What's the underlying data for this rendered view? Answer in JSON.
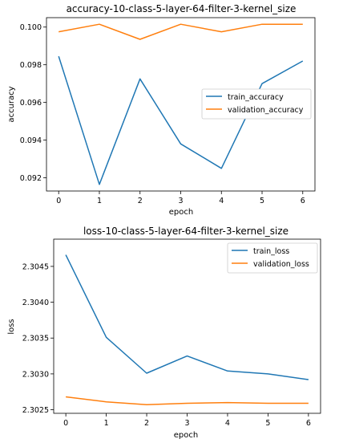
{
  "colors": {
    "train": "#1f77b4",
    "validation": "#ff7f0e",
    "frame": "#000000",
    "legend_border": "#cccccc"
  },
  "chart_data": [
    {
      "type": "line",
      "title": "accuracy-10-class-5-layer-64-filter-3-kernel_size",
      "xlabel": "epoch",
      "ylabel": "accuracy",
      "x": [
        0,
        1,
        2,
        3,
        4,
        5,
        6
      ],
      "xticks": [
        "0",
        "1",
        "2",
        "3",
        "4",
        "5",
        "6"
      ],
      "yticks": [
        "0.092",
        "0.094",
        "0.096",
        "0.098",
        "0.100"
      ],
      "ytick_values": [
        0.092,
        0.094,
        0.096,
        0.098,
        0.1
      ],
      "xlim": [
        -0.3,
        6.3
      ],
      "ylim": [
        0.0913,
        0.1005
      ],
      "legend_position": "center-right",
      "series": [
        {
          "name": "train_accuracy",
          "values": [
            0.09845,
            0.09165,
            0.09725,
            0.0938,
            0.0925,
            0.097,
            0.0982
          ]
        },
        {
          "name": "validation_accuracy",
          "values": [
            0.09975,
            0.10015,
            0.09935,
            0.10015,
            0.09975,
            0.10015,
            0.10015
          ]
        }
      ],
      "grid": false
    },
    {
      "type": "line",
      "title": "loss-10-class-5-layer-64-filter-3-kernel_size",
      "xlabel": "epoch",
      "ylabel": "loss",
      "x": [
        0,
        1,
        2,
        3,
        4,
        5,
        6
      ],
      "xticks": [
        "0",
        "1",
        "2",
        "3",
        "4",
        "5",
        "6"
      ],
      "yticks": [
        "2.3025",
        "2.3030",
        "2.3035",
        "2.3040",
        "2.3045"
      ],
      "ytick_values": [
        2.3025,
        2.303,
        2.3035,
        2.304,
        2.3045
      ],
      "xlim": [
        -0.3,
        6.3
      ],
      "ylim": [
        2.30245,
        2.30488
      ],
      "legend_position": "top-right",
      "series": [
        {
          "name": "train_loss",
          "values": [
            2.30466,
            2.30351,
            2.30301,
            2.30325,
            2.30304,
            2.303,
            2.30292
          ]
        },
        {
          "name": "validation_loss",
          "values": [
            2.30268,
            2.30261,
            2.30257,
            2.30259,
            2.3026,
            2.30259,
            2.30259
          ]
        }
      ],
      "grid": false
    }
  ]
}
